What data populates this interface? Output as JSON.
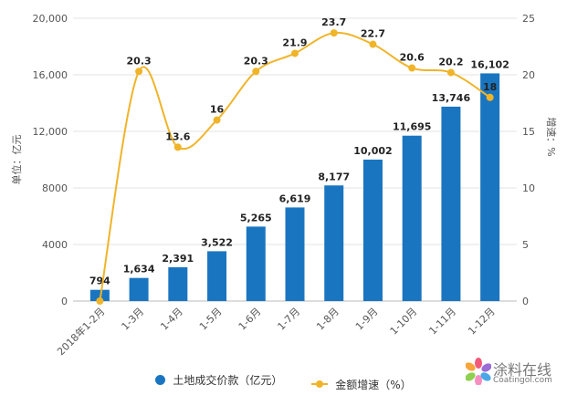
{
  "chart_data": {
    "type": "bar+line",
    "categories": [
      "2018年1-2月",
      "1-3月",
      "1-4月",
      "1-5月",
      "1-6月",
      "1-7月",
      "1-8月",
      "1-9月",
      "1-10月",
      "1-11月",
      "1-12月"
    ],
    "series": [
      {
        "name": "土地成交价款（亿元）",
        "type": "bar",
        "axis": "left",
        "color": "#1a75c0",
        "values": [
          794,
          1634,
          2391,
          3522,
          5265,
          6619,
          8177,
          10002,
          11695,
          13746,
          16102
        ],
        "labels": [
          "794",
          "1,634",
          "2,391",
          "3,522",
          "5,265",
          "6,619",
          "8,177",
          "10,002",
          "11,695",
          "13,746",
          "16,102"
        ]
      },
      {
        "name": "金额增速（%）",
        "type": "line",
        "axis": "right",
        "color": "#f0b429",
        "values": [
          0,
          20.3,
          13.6,
          16,
          20.3,
          21.9,
          23.7,
          22.7,
          20.6,
          20.2,
          18
        ],
        "labels": [
          "",
          "20.3",
          "13.6",
          "16",
          "20.3",
          "21.9",
          "23.7",
          "22.7",
          "20.6",
          "20.2",
          "18"
        ]
      }
    ],
    "ylabel_left": "单位：亿元",
    "ylabel_right": "增速：%",
    "ylim_left": [
      0,
      20000
    ],
    "ylim_right": [
      0,
      25
    ],
    "yticks_left": [
      "0",
      "4000",
      "8000",
      "12,000",
      "16,000",
      "20,000"
    ],
    "yticks_right": [
      "0",
      "5",
      "10",
      "15",
      "20",
      "25"
    ],
    "grid": true,
    "legend": "bottom"
  },
  "watermark": {
    "brand_cn": "涂料在线",
    "brand_en": "Coatingol.com"
  }
}
